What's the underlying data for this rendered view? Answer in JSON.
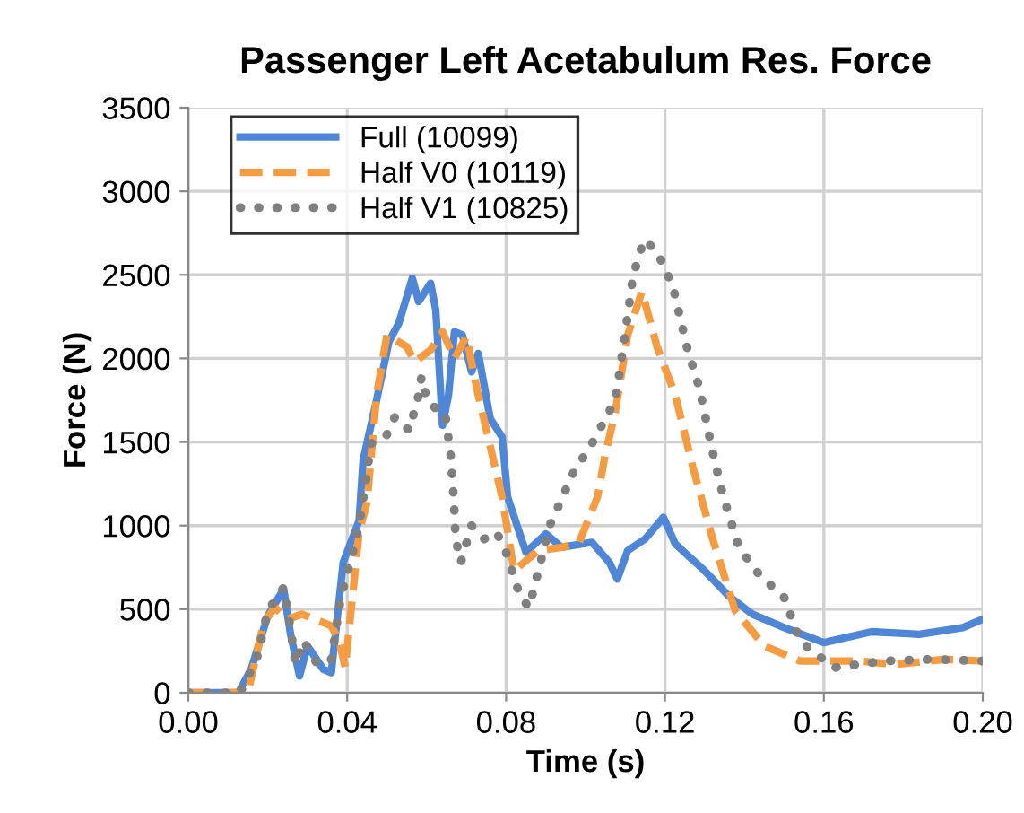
{
  "chart_data": {
    "type": "line",
    "title": "Passenger Left Acetabulum Res. Force",
    "xlabel": "Time (s)",
    "ylabel": "Force (N)",
    "xlim": [
      0,
      0.2
    ],
    "xticks": [
      {
        "value": 0,
        "label": "0.00"
      },
      {
        "value": 0.04,
        "label": "0.04"
      },
      {
        "value": 0.08,
        "label": "0.08"
      },
      {
        "value": 0.12,
        "label": "0.12"
      },
      {
        "value": 0.16,
        "label": "0.16"
      },
      {
        "value": 0.2,
        "label": "0.20"
      }
    ],
    "ylim": [
      0,
      3500
    ],
    "yticks": [
      0,
      500,
      1000,
      1500,
      2000,
      2500,
      3000,
      3500
    ],
    "grid": true,
    "legend": "top left",
    "marker": "none",
    "series": [
      {
        "name": "Full (10099)",
        "color": "#4f87d6",
        "line_style": "solid",
        "x": [
          0,
          0.0126,
          0.0158,
          0.02,
          0.024,
          0.0257,
          0.028,
          0.03,
          0.034,
          0.036,
          0.039,
          0.043,
          0.044,
          0.0474,
          0.0505,
          0.053,
          0.0564,
          0.058,
          0.061,
          0.0623,
          0.064,
          0.0655,
          0.067,
          0.069,
          0.0713,
          0.073,
          0.076,
          0.079,
          0.0804,
          0.085,
          0.09,
          0.094,
          0.1016,
          0.106,
          0.108,
          0.1106,
          0.115,
          0.1196,
          0.1226,
          0.13,
          0.136,
          0.142,
          0.15,
          0.16,
          0.172,
          0.184,
          0.195,
          0.2
        ],
        "values": [
          0,
          0,
          140,
          460,
          620,
          355,
          100,
          280,
          140,
          120,
          780,
          1030,
          1390,
          1750,
          2100,
          2210,
          2480,
          2340,
          2450,
          2290,
          1600,
          1780,
          2160,
          2140,
          1920,
          2030,
          1640,
          1530,
          1170,
          840,
          950,
          870,
          900,
          780,
          680,
          850,
          920,
          1050,
          890,
          730,
          580,
          470,
          390,
          300,
          365,
          350,
          390,
          440
        ]
      },
      {
        "name": "Half V0 (10119)",
        "color": "#f59b42",
        "line_style": "dashed",
        "x": [
          0,
          0.015,
          0.019,
          0.0218,
          0.025,
          0.0286,
          0.034,
          0.036,
          0.038,
          0.0395,
          0.043,
          0.045,
          0.0474,
          0.05,
          0.055,
          0.057,
          0.061,
          0.064,
          0.067,
          0.07,
          0.073,
          0.079,
          0.082,
          0.088,
          0.094,
          0.0984,
          0.103,
          0.105,
          0.1075,
          0.1106,
          0.1142,
          0.118,
          0.1226,
          0.127,
          0.132,
          0.1377,
          0.145,
          0.154,
          0.169,
          0.178,
          0.1905,
          0.2
        ],
        "values": [
          0,
          0,
          420,
          510,
          440,
          470,
          420,
          400,
          310,
          150,
          960,
          1140,
          1780,
          2140,
          2070,
          1980,
          2050,
          2160,
          2000,
          2130,
          1780,
          1170,
          730,
          850,
          870,
          900,
          1170,
          1430,
          1680,
          2140,
          2400,
          2070,
          1780,
          1350,
          920,
          490,
          280,
          190,
          190,
          170,
          200,
          190
        ]
      },
      {
        "name": "Half V1 (10825)",
        "color": "#808080",
        "line_style": "dotted",
        "x": [
          0,
          0.013,
          0.0172,
          0.02,
          0.024,
          0.0257,
          0.027,
          0.029,
          0.0325,
          0.036,
          0.0384,
          0.0415,
          0.043,
          0.0444,
          0.046,
          0.0497,
          0.052,
          0.0556,
          0.058,
          0.0587,
          0.06,
          0.0623,
          0.0646,
          0.066,
          0.0668,
          0.0673,
          0.0686,
          0.0713,
          0.0745,
          0.0776,
          0.08,
          0.0835,
          0.0858,
          0.091,
          0.097,
          0.1016,
          0.1075,
          0.1097,
          0.112,
          0.1147,
          0.118,
          0.122,
          0.1255,
          0.1287,
          0.132,
          0.1345,
          0.1386,
          0.1436,
          0.15,
          0.154,
          0.1625,
          0.175,
          0.1874,
          0.2
        ],
        "values": [
          0,
          0,
          200,
          490,
          630,
          390,
          170,
          310,
          170,
          200,
          570,
          850,
          1000,
          1220,
          1490,
          1530,
          1650,
          1570,
          1780,
          1890,
          1760,
          1700,
          1680,
          1430,
          1170,
          920,
          780,
          1000,
          920,
          960,
          840,
          580,
          510,
          1000,
          1320,
          1490,
          1750,
          2100,
          2500,
          2710,
          2640,
          2430,
          2070,
          1820,
          1440,
          1190,
          870,
          710,
          570,
          310,
          150,
          190,
          200,
          190
        ]
      }
    ]
  }
}
